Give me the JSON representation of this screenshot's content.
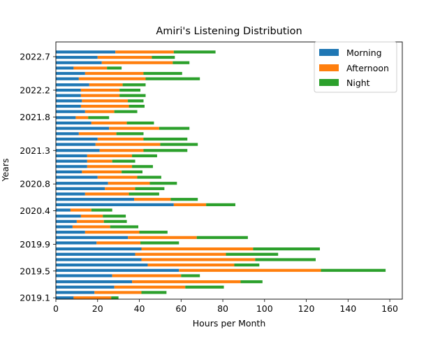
{
  "chart_data": {
    "type": "bar",
    "orientation": "horizontal",
    "stacked": true,
    "title": "Amiri's Listening Distribution",
    "xlabel": "Hours per Month",
    "ylabel": "Years",
    "xlim": [
      0,
      166
    ],
    "ylim": [
      2019.08,
      2022.92
    ],
    "x_ticks": [
      0,
      20,
      40,
      60,
      80,
      100,
      120,
      140,
      160
    ],
    "y_ticks": [
      2019.1,
      2019.5,
      2019.9,
      2020.4,
      2020.8,
      2021.3,
      2021.8,
      2022.2,
      2022.7
    ],
    "grid": false,
    "legend_position": "upper-right",
    "y": [
      2019.1,
      2019.18,
      2019.26,
      2019.34,
      2019.43,
      2019.51,
      2019.59,
      2019.67,
      2019.75,
      2019.83,
      2019.92,
      2020.0,
      2020.08,
      2020.16,
      2020.24,
      2020.32,
      2020.41,
      2020.49,
      2020.57,
      2020.65,
      2020.73,
      2020.81,
      2020.9,
      2020.98,
      2021.06,
      2021.14,
      2021.22,
      2021.3,
      2021.39,
      2021.47,
      2021.55,
      2021.63,
      2021.71,
      2021.79,
      2021.88,
      2021.96,
      2022.04,
      2022.12,
      2022.2,
      2022.28,
      2022.37,
      2022.45,
      2022.53,
      2022.61,
      2022.69,
      2022.77,
      2022.86
    ],
    "series": [
      {
        "name": "Morning",
        "color": "#1f77b4",
        "values": [
          8.5,
          18.5,
          28.0,
          36.5,
          27.0,
          59.0,
          44.0,
          41.0,
          38.0,
          41.0,
          19.5,
          34.5,
          14.0,
          8.0,
          10.0,
          12.0,
          7.0,
          56.5,
          37.5,
          14.0,
          23.5,
          25.0,
          20.0,
          12.5,
          15.0,
          15.0,
          15.0,
          21.0,
          19.0,
          20.0,
          11.0,
          25.5,
          17.0,
          9.5,
          14.0,
          12.0,
          12.5,
          12.0,
          12.0,
          16.0,
          11.0,
          14.0,
          8.5,
          22.0,
          20.0,
          28.5,
          0
        ]
      },
      {
        "name": "Afternoon",
        "color": "#ff7f0e",
        "values": [
          18.0,
          22.5,
          34.0,
          52.0,
          33.0,
          68.0,
          41.5,
          54.5,
          43.5,
          53.5,
          21.0,
          33.0,
          26.0,
          18.0,
          13.0,
          10.5,
          10.0,
          15.5,
          17.5,
          21.0,
          14.5,
          20.0,
          19.0,
          19.0,
          21.5,
          12.0,
          21.5,
          21.0,
          31.0,
          22.0,
          18.0,
          24.0,
          17.0,
          6.0,
          14.0,
          23.0,
          22.0,
          18.5,
          18.5,
          16.0,
          32.0,
          28.0,
          16.0,
          34.0,
          26.0,
          28.0,
          0
        ]
      },
      {
        "name": "Night",
        "color": "#2ca02c",
        "values": [
          3.5,
          12.0,
          18.5,
          10.5,
          9.0,
          31.0,
          12.0,
          29.0,
          25.0,
          32.0,
          18.5,
          24.5,
          13.5,
          13.5,
          11.0,
          11.0,
          10.0,
          14.0,
          13.0,
          14.5,
          14.0,
          13.0,
          11.5,
          10.0,
          10.0,
          11.0,
          12.0,
          21.0,
          18.0,
          21.0,
          13.0,
          14.5,
          13.0,
          10.0,
          11.0,
          7.5,
          7.5,
          12.5,
          10.0,
          11.0,
          26.0,
          18.5,
          7.0,
          8.0,
          11.0,
          20.0,
          0
        ]
      }
    ]
  }
}
